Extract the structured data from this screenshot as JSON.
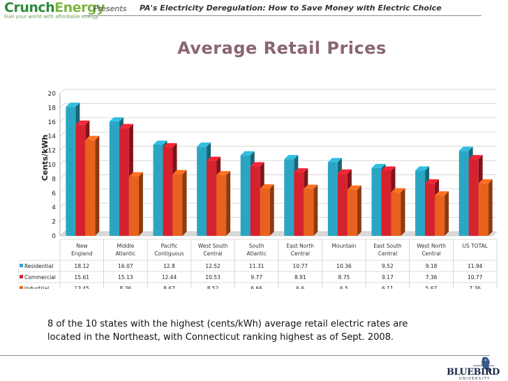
{
  "header": {
    "logo_part1": "Crunch",
    "logo_part2": "Energy",
    "logo_tagline": "Fuel your world with affordable energy",
    "presents": "Presents",
    "title": "PA's Electricity Deregulation: How to Save Money with Electric Choice"
  },
  "colors": {
    "residential": "#2aa6c4",
    "commercial": "#d6212e",
    "industrial": "#e8621d",
    "title": "#8a6672"
  },
  "chart_data": {
    "type": "bar",
    "title": "Average Retail Prices",
    "ylabel": "Cents/kWh",
    "xlabel": "",
    "ylim": [
      0,
      20
    ],
    "yticks": [
      "0",
      "2",
      "4",
      "6",
      "8",
      "10",
      "12",
      "14",
      "16",
      "18",
      "20"
    ],
    "categories": [
      [
        "New",
        "England"
      ],
      [
        "Middle",
        "Atlantic"
      ],
      [
        "Pacific",
        "Contiguous"
      ],
      [
        "West South",
        "Central"
      ],
      [
        "South",
        "Atlantic"
      ],
      [
        "East North",
        "Central"
      ],
      [
        "Mountain",
        ""
      ],
      [
        "East South",
        "Central"
      ],
      [
        "West North",
        "Central"
      ],
      [
        "US TOTAL",
        ""
      ]
    ],
    "series": [
      {
        "name": "Residential",
        "values": [
          18.12,
          16.07,
          12.8,
          12.52,
          11.31,
          10.77,
          10.36,
          9.52,
          9.18,
          11.94
        ]
      },
      {
        "name": "Commercial",
        "values": [
          15.61,
          15.13,
          12.44,
          10.53,
          9.77,
          8.91,
          8.75,
          9.17,
          7.36,
          10.77
        ]
      },
      {
        "name": "Industrial",
        "values": [
          13.45,
          8.36,
          8.67,
          8.52,
          6.66,
          6.6,
          6.5,
          6.11,
          5.67,
          7.36
        ]
      }
    ],
    "table_labels": [
      [
        "18.12",
        "16.07",
        "12.8",
        "12.52",
        "11.31",
        "10.77",
        "10.36",
        "9.52",
        "9.18",
        "11.94"
      ],
      [
        "15.61",
        "15.13",
        "12.44",
        "10.53",
        "9.77",
        "8.91",
        "8.75",
        "9.17",
        "7.36",
        "10.77"
      ],
      [
        "13.45",
        "8.36",
        "8.67",
        "8.52",
        "6.66",
        "6.6",
        "6.5",
        "6.11",
        "5.67",
        "7.36"
      ]
    ]
  },
  "caption": "8 of the 10 states with the highest (cents/kWh) average retail electric rates are located in the Northeast, with Connecticut ranking highest as of Sept. 2008.",
  "footer": {
    "logo_name": "BLUEBIRD",
    "logo_sub": "UNIVERSITY"
  }
}
